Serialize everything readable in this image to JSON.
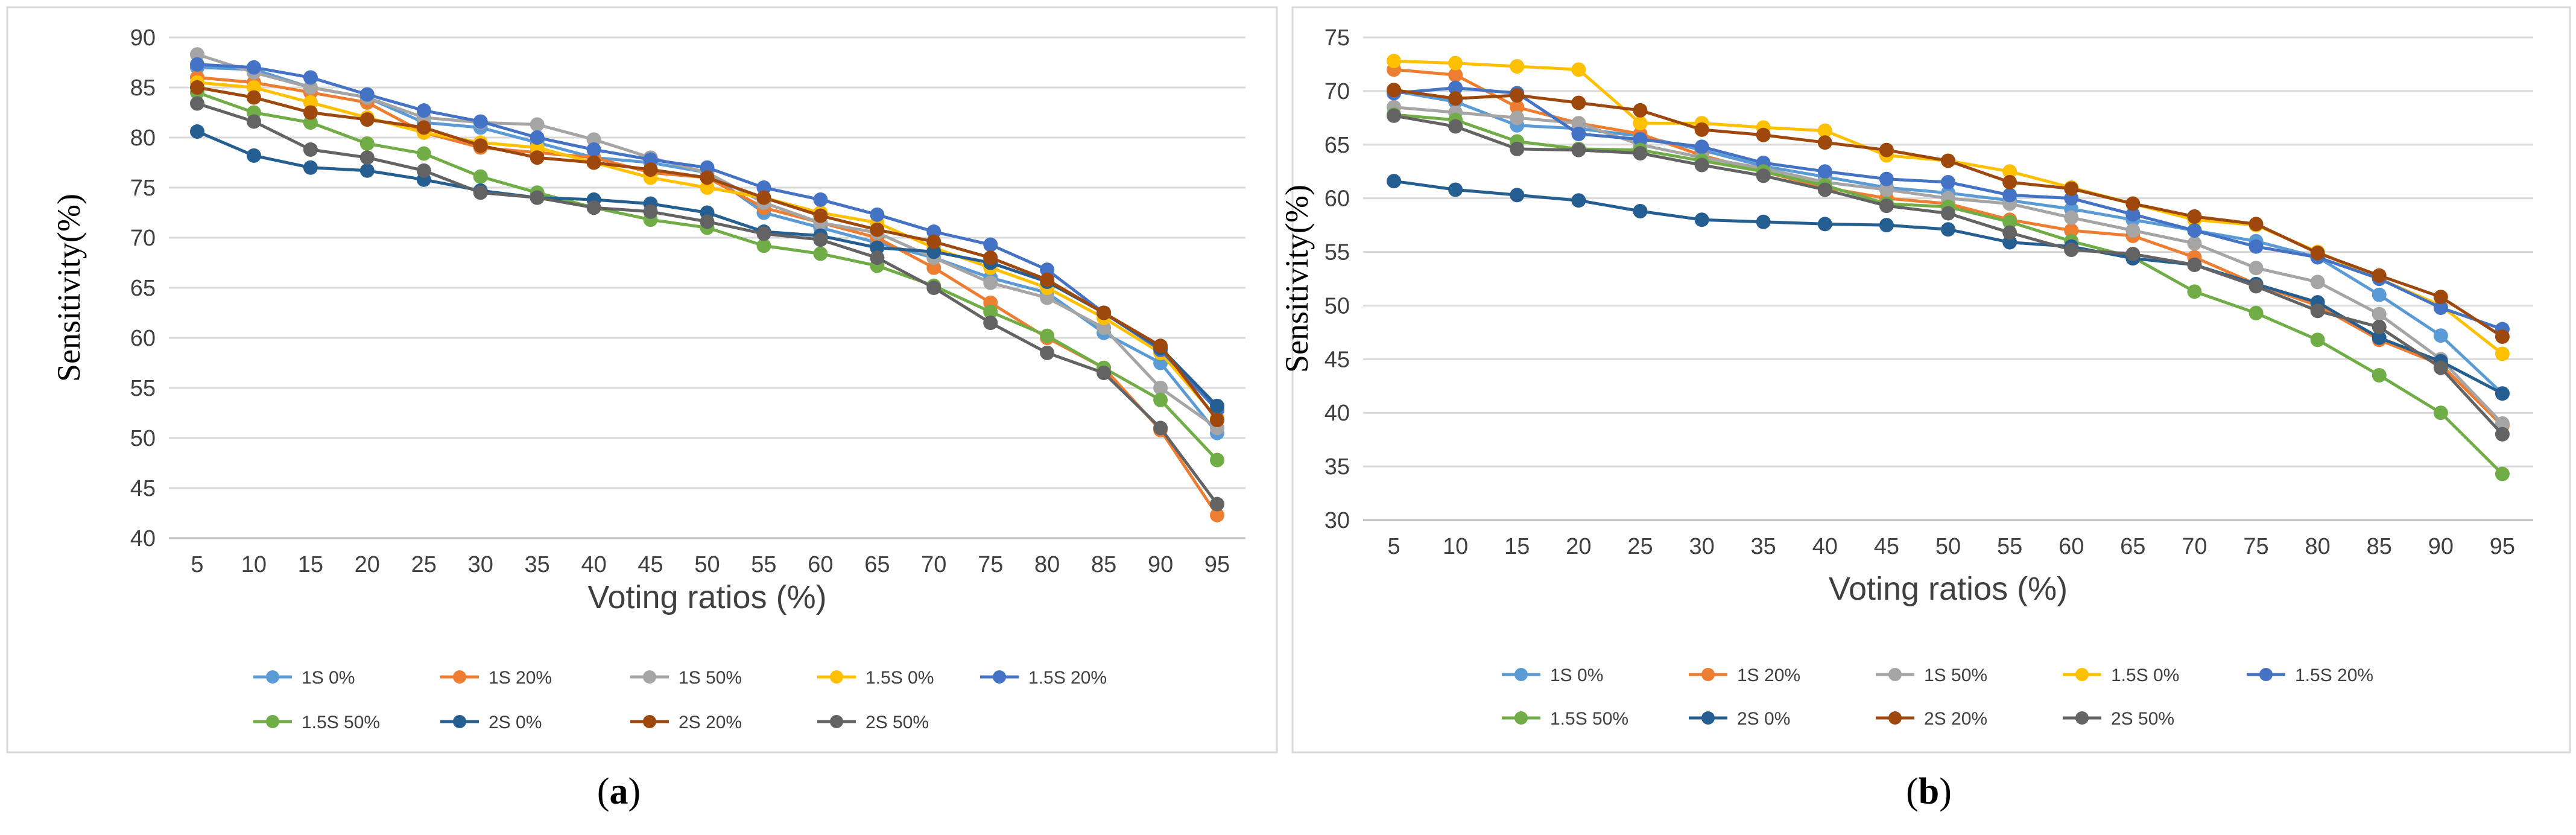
{
  "chart_data": [
    {
      "id": "a",
      "caption": {
        "open": "(",
        "letter": "a",
        "close": ")"
      },
      "type": "line",
      "title": "",
      "xlabel": "Voting ratios (%)",
      "ylabel": "Sensitivity(%)",
      "ylim": [
        40,
        90
      ],
      "ystep": 5,
      "categories": [
        "5",
        "10",
        "15",
        "20",
        "25",
        "30",
        "35",
        "40",
        "45",
        "50",
        "55",
        "60",
        "65",
        "70",
        "75",
        "80",
        "85",
        "90",
        "95"
      ],
      "legend_position": "bottom",
      "series": [
        {
          "name": "1S 0%",
          "color": "#5b9bd5",
          "values": [
            87.0,
            86.8,
            85.0,
            84.0,
            81.5,
            81.0,
            79.5,
            78.0,
            77.5,
            76.5,
            72.5,
            71.0,
            69.5,
            68.0,
            66.0,
            64.5,
            60.5,
            57.5,
            50.5
          ]
        },
        {
          "name": "1S 20%",
          "color": "#ed7d31",
          "values": [
            86.0,
            85.5,
            84.5,
            83.5,
            80.5,
            79.0,
            78.5,
            78.0,
            76.5,
            76.0,
            73.0,
            71.5,
            70.0,
            67.0,
            63.5,
            60.0,
            57.0,
            50.8,
            42.3
          ]
        },
        {
          "name": "1S 50%",
          "color": "#a5a5a5",
          "values": [
            88.3,
            86.5,
            85.0,
            84.0,
            82.0,
            81.5,
            81.3,
            79.8,
            78.0,
            76.5,
            73.5,
            71.5,
            70.5,
            68.0,
            65.5,
            64.0,
            61.0,
            55.0,
            51.0
          ]
        },
        {
          "name": "1.5S 0%",
          "color": "#ffc000",
          "values": [
            85.5,
            85.0,
            83.5,
            82.0,
            80.5,
            79.5,
            79.0,
            77.5,
            76.0,
            75.0,
            74.0,
            72.5,
            71.5,
            69.0,
            67.0,
            65.0,
            62.0,
            58.5,
            52.0
          ]
        },
        {
          "name": "1.5S 20%",
          "color": "#4472c4",
          "values": [
            87.3,
            87.0,
            86.0,
            84.3,
            82.7,
            81.6,
            80.0,
            78.8,
            77.8,
            77.0,
            75.0,
            73.8,
            72.3,
            70.6,
            69.3,
            66.8,
            62.5,
            58.8,
            52.8
          ]
        },
        {
          "name": "1.5S 50%",
          "color": "#70ad47",
          "values": [
            84.5,
            82.5,
            81.5,
            79.4,
            78.4,
            76.1,
            74.5,
            73.0,
            71.8,
            71.0,
            69.2,
            68.4,
            67.2,
            65.2,
            62.6,
            60.2,
            57.0,
            53.8,
            47.8
          ]
        },
        {
          "name": "2S 0%",
          "color": "#255e91",
          "values": [
            80.6,
            78.2,
            77.0,
            76.7,
            75.8,
            74.7,
            74.0,
            73.8,
            73.4,
            72.5,
            70.6,
            70.2,
            69.0,
            68.6,
            67.5,
            65.6,
            62.5,
            59.0,
            53.2
          ]
        },
        {
          "name": "2S 20%",
          "color": "#9e480e",
          "values": [
            85.0,
            84.0,
            82.5,
            81.8,
            81.0,
            79.2,
            78.0,
            77.5,
            76.8,
            76.0,
            74.0,
            72.2,
            70.8,
            69.6,
            68.0,
            65.8,
            62.5,
            59.2,
            51.8
          ]
        },
        {
          "name": "2S 50%",
          "color": "#636363",
          "values": [
            83.4,
            81.6,
            78.8,
            78.0,
            76.7,
            74.5,
            74.0,
            73.0,
            72.6,
            71.6,
            70.4,
            69.8,
            68.0,
            65.0,
            61.5,
            58.5,
            56.5,
            51.0,
            43.4
          ]
        }
      ]
    },
    {
      "id": "b",
      "caption": {
        "open": "(",
        "letter": "b",
        "close": ")"
      },
      "type": "line",
      "title": "",
      "xlabel": "Voting ratios (%)",
      "ylabel": "Sensitivity(%)",
      "ylim": [
        30,
        75
      ],
      "ystep": 5,
      "categories": [
        "5",
        "10",
        "15",
        "20",
        "25",
        "30",
        "35",
        "40",
        "45",
        "50",
        "55",
        "60",
        "65",
        "70",
        "75",
        "80",
        "85",
        "90",
        "95"
      ],
      "legend_position": "bottom",
      "series": [
        {
          "name": "1S 0%",
          "color": "#5b9bd5",
          "values": [
            70.0,
            69.0,
            66.8,
            66.5,
            65.8,
            64.5,
            63.0,
            62.0,
            61.0,
            60.5,
            59.8,
            59.0,
            58.0,
            57.0,
            56.0,
            54.5,
            51.0,
            47.2,
            41.8
          ]
        },
        {
          "name": "1S 20%",
          "color": "#ed7d31",
          "values": [
            72.0,
            71.5,
            68.5,
            67.0,
            66.0,
            64.0,
            62.5,
            61.0,
            60.0,
            59.5,
            58.0,
            57.0,
            56.5,
            54.5,
            52.0,
            50.0,
            46.8,
            44.5,
            38.8
          ]
        },
        {
          "name": "1S 50%",
          "color": "#a5a5a5",
          "values": [
            68.5,
            68.0,
            67.5,
            67.0,
            65.0,
            63.8,
            62.8,
            61.5,
            60.8,
            60.0,
            59.5,
            58.2,
            57.0,
            55.8,
            53.5,
            52.2,
            49.2,
            45.0,
            39.0
          ]
        },
        {
          "name": "1.5S 0%",
          "color": "#ffc000",
          "values": [
            72.8,
            72.6,
            72.3,
            72.0,
            67.0,
            67.0,
            66.6,
            66.3,
            64.0,
            63.5,
            62.5,
            61.0,
            59.5,
            58.0,
            57.5,
            55.0,
            52.5,
            50.0,
            45.5
          ]
        },
        {
          "name": "1.5S 20%",
          "color": "#4472c4",
          "values": [
            69.8,
            70.3,
            69.8,
            66.0,
            65.5,
            64.8,
            63.3,
            62.5,
            61.8,
            61.5,
            60.3,
            60.0,
            58.5,
            57.0,
            55.5,
            54.5,
            52.5,
            49.8,
            47.8
          ]
        },
        {
          "name": "1.5S 50%",
          "color": "#70ad47",
          "values": [
            67.8,
            67.3,
            65.3,
            64.6,
            64.5,
            63.5,
            62.5,
            61.2,
            59.5,
            59.2,
            57.8,
            56.0,
            54.5,
            51.3,
            49.3,
            46.8,
            43.5,
            40.0,
            34.3
          ]
        },
        {
          "name": "2S 0%",
          "color": "#255e91",
          "values": [
            61.6,
            60.8,
            60.3,
            59.8,
            58.8,
            58.0,
            57.8,
            57.6,
            57.5,
            57.1,
            55.9,
            55.5,
            54.4,
            53.8,
            52.0,
            50.3,
            47.0,
            44.8,
            41.8
          ]
        },
        {
          "name": "2S 20%",
          "color": "#9e480e",
          "values": [
            70.1,
            69.3,
            69.6,
            68.9,
            68.2,
            66.4,
            65.9,
            65.2,
            64.5,
            63.5,
            61.5,
            60.9,
            59.5,
            58.3,
            57.6,
            54.9,
            52.8,
            50.8,
            47.1
          ]
        },
        {
          "name": "2S 50%",
          "color": "#636363",
          "values": [
            67.7,
            66.7,
            64.6,
            64.5,
            64.2,
            63.1,
            62.1,
            60.8,
            59.3,
            58.6,
            56.8,
            55.2,
            54.8,
            53.8,
            51.8,
            49.5,
            48.0,
            44.2,
            38.0
          ]
        }
      ]
    }
  ]
}
